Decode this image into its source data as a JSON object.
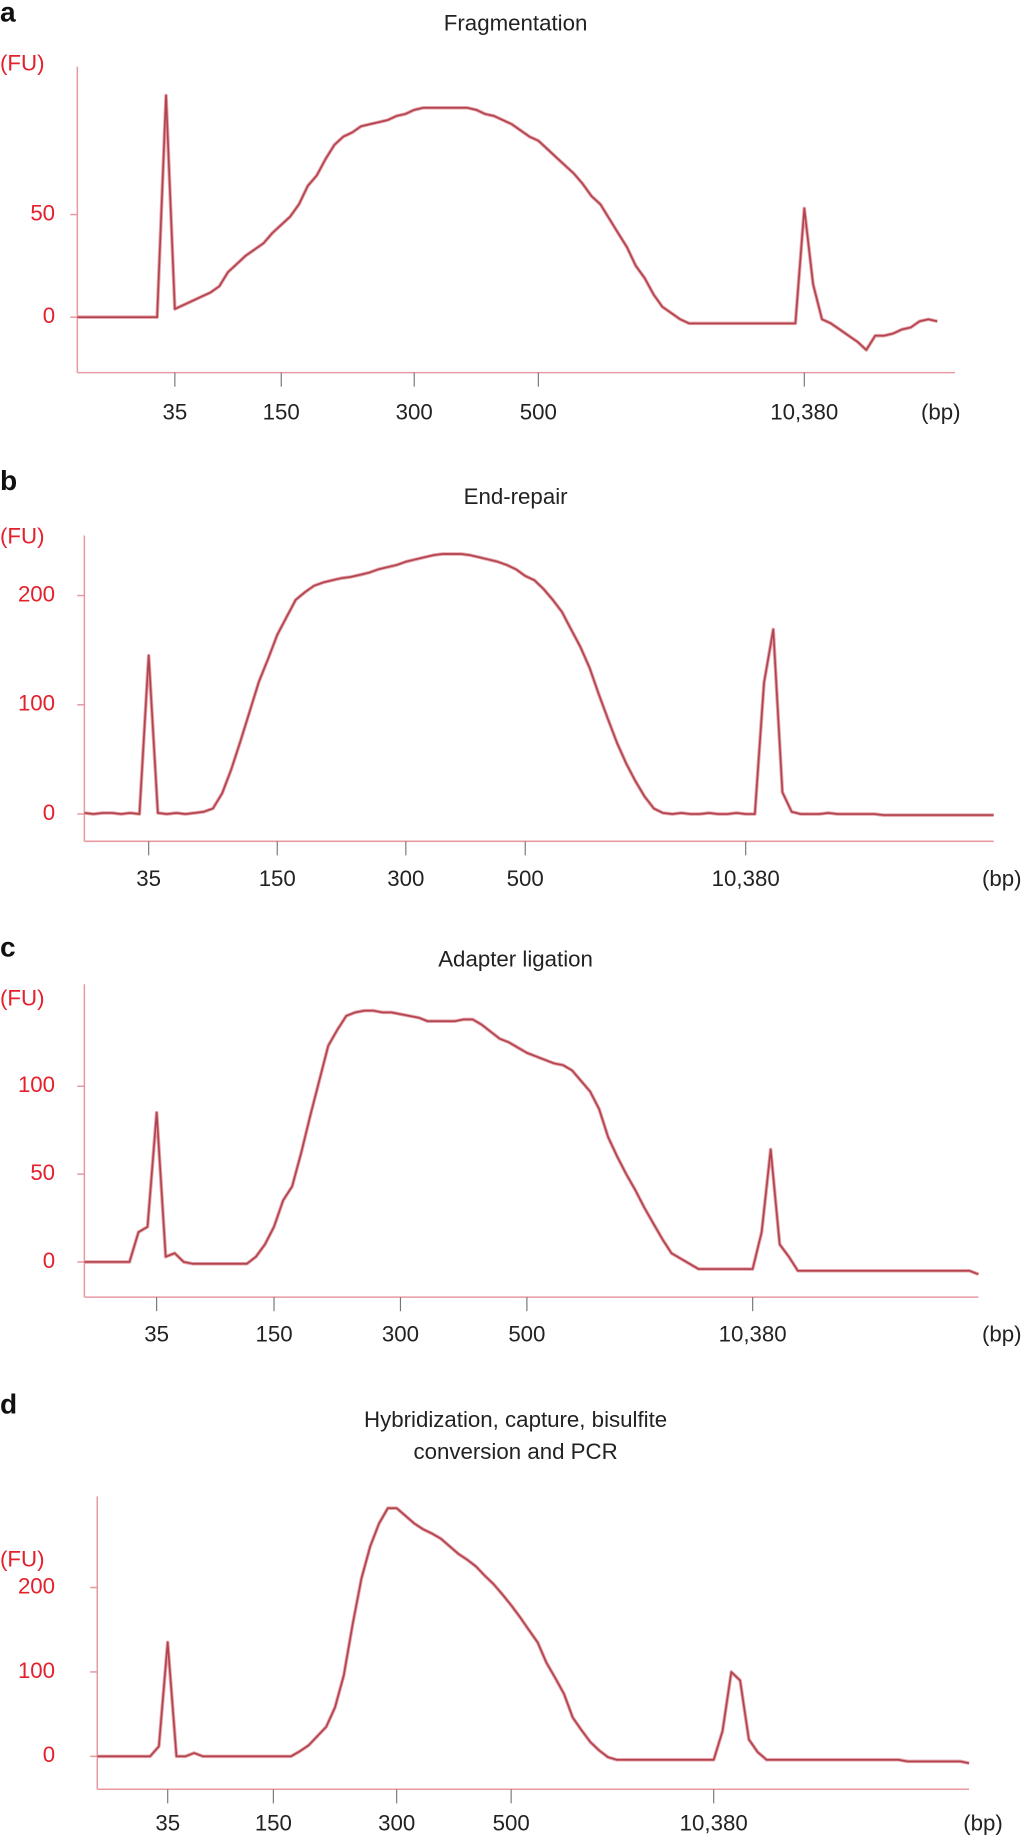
{
  "chart_data": [
    {
      "type": "line",
      "label": "a",
      "title": "Fragmentation",
      "y_label": "(FU)",
      "x_label": "(bp)",
      "color": "#b0434d",
      "axis_color": "#e79aa2",
      "tick_label_color": "#e3202c",
      "ylim": [
        -27,
        122
      ],
      "yticks": [
        0,
        50
      ],
      "categories": [
        null,
        null,
        null,
        null,
        null,
        null,
        null,
        null,
        null,
        null,
        null,
        "35",
        null,
        null,
        null,
        null,
        null,
        null,
        null,
        null,
        null,
        null,
        null,
        "150",
        null,
        null,
        null,
        null,
        null,
        null,
        null,
        null,
        null,
        null,
        null,
        null,
        null,
        null,
        "300",
        null,
        null,
        null,
        null,
        null,
        null,
        null,
        null,
        null,
        null,
        null,
        null,
        null,
        "500",
        null,
        null,
        null,
        null,
        null,
        null,
        null,
        null,
        null,
        null,
        null,
        null,
        null,
        null,
        null,
        null,
        null,
        null,
        null,
        null,
        null,
        null,
        null,
        null,
        null,
        null,
        null,
        null,
        null,
        "10,380",
        null,
        null,
        null,
        null,
        null,
        null,
        null,
        null,
        null,
        null,
        null,
        null,
        null,
        null,
        null,
        null,
        null
      ],
      "values": [
        0,
        0,
        0,
        0,
        0,
        0,
        0,
        0,
        0,
        0,
        108,
        4,
        6,
        8,
        10,
        12,
        15,
        22,
        26,
        30,
        33,
        36,
        41,
        45,
        49,
        55,
        64,
        69,
        77,
        84,
        88,
        90,
        93,
        94,
        95,
        96,
        98,
        99,
        101,
        102,
        102,
        102,
        102,
        102,
        102,
        101,
        99,
        98,
        96,
        94,
        91,
        88,
        86,
        82,
        78,
        74,
        70,
        65,
        59,
        55,
        48,
        41,
        34,
        25,
        19,
        11,
        5,
        2,
        -1,
        -3,
        -3,
        -3,
        -3,
        -3,
        -3,
        -3,
        -3,
        -3,
        -3,
        -3,
        -3,
        -3,
        53,
        16,
        -1,
        -3,
        -6,
        -9,
        -12,
        -16,
        -9,
        -9,
        -8,
        -6,
        -5,
        -2,
        -1,
        -2,
        null,
        null
      ]
    },
    {
      "type": "line",
      "label": "b",
      "title": "End-repair",
      "y_label": "(FU)",
      "x_label": "(bp)",
      "color": "#b0434d",
      "axis_color": "#e79aa2",
      "tick_label_color": "#e3202c",
      "ylim": [
        -25,
        255
      ],
      "yticks": [
        0,
        100,
        200
      ],
      "categories": [
        null,
        null,
        null,
        null,
        null,
        null,
        null,
        "35",
        null,
        null,
        null,
        null,
        null,
        null,
        null,
        null,
        null,
        null,
        null,
        null,
        null,
        "150",
        null,
        null,
        null,
        null,
        null,
        null,
        null,
        null,
        null,
        null,
        null,
        null,
        null,
        "300",
        null,
        null,
        null,
        null,
        null,
        null,
        null,
        null,
        null,
        null,
        null,
        null,
        "500",
        null,
        null,
        null,
        null,
        null,
        null,
        null,
        null,
        null,
        null,
        null,
        null,
        null,
        null,
        null,
        null,
        null,
        null,
        null,
        null,
        null,
        null,
        null,
        "10,380",
        null,
        null,
        null,
        null,
        null,
        null,
        null,
        null,
        null,
        null,
        null,
        null,
        null,
        null,
        null,
        null,
        null,
        null,
        null,
        null,
        null,
        null,
        null,
        null,
        null,
        null,
        null
      ],
      "values": [
        1,
        0,
        1,
        1,
        0,
        1,
        0,
        145,
        1,
        0,
        1,
        0,
        1,
        2,
        5,
        19,
        41,
        67,
        94,
        121,
        142,
        164,
        180,
        196,
        203,
        209,
        212,
        214,
        216,
        217,
        219,
        221,
        224,
        226,
        228,
        231,
        233,
        235,
        237,
        238,
        238,
        238,
        237,
        235,
        233,
        231,
        228,
        224,
        218,
        214,
        206,
        196,
        185,
        169,
        153,
        134,
        110,
        87,
        65,
        46,
        30,
        16,
        5,
        1,
        0,
        1,
        0,
        0,
        1,
        0,
        0,
        1,
        0,
        0,
        120,
        169,
        20,
        2,
        0,
        0,
        0,
        1,
        0,
        0,
        0,
        0,
        0,
        -1,
        -1,
        -1,
        -1,
        -1,
        -1,
        -1,
        -1,
        -1,
        -1,
        -1,
        -1,
        -1
      ]
    },
    {
      "type": "line",
      "label": "c",
      "title": "Adapter ligation",
      "y_label": "(FU)",
      "x_label": "(bp)",
      "color": "#b0434d",
      "axis_color": "#e79aa2",
      "tick_label_color": "#e3202c",
      "ylim": [
        -20,
        158
      ],
      "yticks": [
        0,
        50,
        100
      ],
      "categories": [
        null,
        null,
        null,
        null,
        null,
        null,
        null,
        null,
        "35",
        null,
        null,
        null,
        null,
        null,
        null,
        null,
        null,
        null,
        null,
        null,
        null,
        "150",
        null,
        null,
        null,
        null,
        null,
        null,
        null,
        null,
        null,
        null,
        null,
        null,
        null,
        "300",
        null,
        null,
        null,
        null,
        null,
        null,
        null,
        null,
        null,
        null,
        null,
        null,
        null,
        "500",
        null,
        null,
        null,
        null,
        null,
        null,
        null,
        null,
        null,
        null,
        null,
        null,
        null,
        null,
        null,
        null,
        null,
        null,
        null,
        null,
        null,
        null,
        null,
        null,
        "10,380",
        null,
        null,
        null,
        null,
        null,
        null,
        null,
        null,
        null,
        null,
        null,
        null,
        null,
        null,
        null,
        null,
        null,
        null,
        null,
        null,
        null,
        null,
        null,
        null,
        null
      ],
      "values": [
        0,
        0,
        0,
        0,
        0,
        0,
        17,
        20,
        85,
        3,
        5,
        0,
        -1,
        -1,
        -1,
        -1,
        -1,
        -1,
        -1,
        3,
        10,
        20,
        35,
        43,
        62,
        83,
        103,
        123,
        132,
        140,
        142,
        143,
        143,
        142,
        142,
        141,
        140,
        139,
        137,
        137,
        137,
        137,
        138,
        138,
        135,
        131,
        127,
        125,
        122,
        119,
        117,
        115,
        113,
        112,
        109,
        103,
        97,
        87,
        71,
        60,
        50,
        41,
        31,
        22,
        13,
        5,
        2,
        -1,
        -4,
        -4,
        -4,
        -4,
        -4,
        -4,
        -4,
        17,
        64,
        10,
        3,
        -5,
        -5,
        -5,
        -5,
        -5,
        -5,
        -5,
        -5,
        -5,
        -5,
        -5,
        -5,
        -5,
        -5,
        -5,
        -5,
        -5,
        -5,
        -5,
        -5,
        -7
      ]
    },
    {
      "type": "line",
      "label": "d",
      "title": "Hybridization, capture, bisulfite conversion and PCR",
      "y_label": "(FU)",
      "x_label": "(bp)",
      "color": "#b0434d",
      "axis_color": "#e79aa2",
      "tick_label_color": "#e3202c",
      "ylim": [
        -39,
        308
      ],
      "yticks": [
        0,
        100,
        200
      ],
      "categories": [
        null,
        null,
        null,
        null,
        null,
        null,
        null,
        null,
        "35",
        null,
        null,
        null,
        null,
        null,
        null,
        null,
        null,
        null,
        null,
        null,
        "150",
        null,
        null,
        null,
        null,
        null,
        null,
        null,
        null,
        null,
        null,
        null,
        null,
        null,
        "300",
        null,
        null,
        null,
        null,
        null,
        null,
        null,
        null,
        null,
        null,
        null,
        null,
        "500",
        null,
        null,
        null,
        null,
        null,
        null,
        null,
        null,
        null,
        null,
        null,
        null,
        null,
        null,
        null,
        null,
        null,
        null,
        null,
        null,
        null,
        null,
        "10,380",
        null,
        null,
        null,
        null,
        null,
        null,
        null,
        null,
        null,
        null,
        null,
        null,
        null,
        null,
        null,
        null,
        null,
        null,
        null,
        null,
        null,
        null,
        null,
        null,
        null,
        null,
        null,
        null,
        null
      ],
      "values": [
        0,
        0,
        0,
        0,
        0,
        0,
        0,
        12,
        135,
        0,
        0,
        4,
        0,
        0,
        0,
        0,
        0,
        0,
        0,
        0,
        0,
        0,
        0,
        6,
        13,
        24,
        35,
        58,
        96,
        156,
        211,
        249,
        276,
        294,
        294,
        285,
        276,
        269,
        264,
        258,
        249,
        240,
        233,
        225,
        214,
        204,
        192,
        179,
        165,
        150,
        135,
        111,
        93,
        74,
        46,
        31,
        17,
        7,
        -1,
        -4,
        -4,
        -4,
        -4,
        -4,
        -4,
        -4,
        -4,
        -4,
        -4,
        -4,
        -4,
        30,
        100,
        90,
        20,
        5,
        -4,
        -4,
        -4,
        -4,
        -4,
        -4,
        -4,
        -4,
        -4,
        -4,
        -4,
        -4,
        -4,
        -4,
        -4,
        -4,
        -6,
        -6,
        -6,
        -6,
        -6,
        -6,
        -6,
        -8
      ]
    }
  ]
}
